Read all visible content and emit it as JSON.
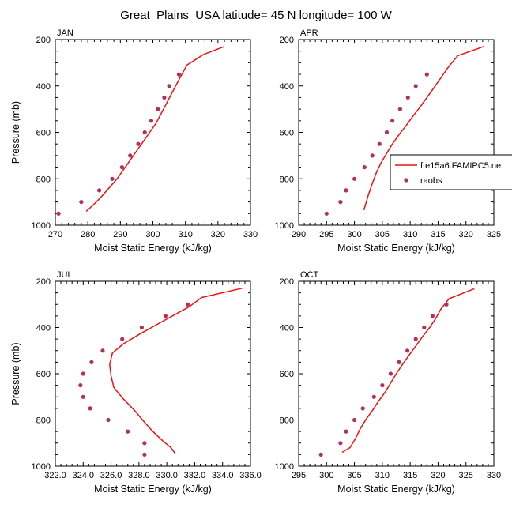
{
  "title": "Great_Plains_USA  latitude= 45 N longitude= 100 W",
  "chart_data": [
    {
      "type": "scatter",
      "panel_label": "JAN",
      "xlabel": "Moist Static Energy (kJ/kg)",
      "ylabel": "Pressure (mb)",
      "xlim": [
        270,
        330
      ],
      "ylim": [
        1000,
        200
      ],
      "y_reversed": true,
      "xticks": [
        270,
        280,
        290,
        300,
        310,
        320,
        330
      ],
      "xtick_labels": [
        "270",
        "280",
        "290",
        "300",
        "310",
        "320",
        "330"
      ],
      "yticks": [
        200,
        400,
        600,
        800,
        1000
      ],
      "yminor_step": 50,
      "series": [
        {
          "name": "f.e15a6.FAMIPC5.ne",
          "kind": "line",
          "color": "#ee1111",
          "points": [
            [
              279.5,
              940
            ],
            [
              281.5,
              915
            ],
            [
              284,
              880
            ],
            [
              286.5,
              840
            ],
            [
              289,
              800
            ],
            [
              291,
              760
            ],
            [
              293,
              720
            ],
            [
              295,
              680
            ],
            [
              297,
              640
            ],
            [
              299,
              600
            ],
            [
              301,
              560
            ],
            [
              302.5,
              520
            ],
            [
              304,
              480
            ],
            [
              305.5,
              440
            ],
            [
              307,
              400
            ],
            [
              308.5,
              360
            ],
            [
              310.5,
              310
            ],
            [
              315.5,
              265
            ],
            [
              322,
              230
            ]
          ]
        },
        {
          "name": "raobs",
          "kind": "scatter",
          "color": "#b03060",
          "points": [
            [
              271,
              950
            ],
            [
              278,
              900
            ],
            [
              283.5,
              850
            ],
            [
              287.5,
              800
            ],
            [
              290.5,
              750
            ],
            [
              293,
              700
            ],
            [
              295.5,
              650
            ],
            [
              297.5,
              600
            ],
            [
              299.5,
              550
            ],
            [
              301.5,
              500
            ],
            [
              303.5,
              450
            ],
            [
              305,
              400
            ],
            [
              308,
              350
            ]
          ]
        }
      ]
    },
    {
      "type": "scatter",
      "panel_label": "APR",
      "xlabel": "Moist Static Energy (kJ/kg)",
      "ylabel": "",
      "xlim": [
        290,
        325
      ],
      "ylim": [
        1000,
        200
      ],
      "y_reversed": true,
      "xticks": [
        290,
        295,
        300,
        305,
        310,
        315,
        320,
        325
      ],
      "xtick_labels": [
        "290",
        "295",
        "300",
        "305",
        "310",
        "315",
        "320",
        "325"
      ],
      "yticks": [
        200,
        400,
        600,
        800,
        1000
      ],
      "yminor_step": 50,
      "series": [
        {
          "name": "f.e15a6.FAMIPC5.ne",
          "kind": "line",
          "color": "#ee1111",
          "points": [
            [
              301.7,
              935
            ],
            [
              302,
              910
            ],
            [
              302.5,
              870
            ],
            [
              303.2,
              820
            ],
            [
              304,
              770
            ],
            [
              304.8,
              730
            ],
            [
              305.8,
              690
            ],
            [
              306.8,
              650
            ],
            [
              308,
              610
            ],
            [
              309.3,
              570
            ],
            [
              310.5,
              530
            ],
            [
              311.8,
              490
            ],
            [
              313,
              450
            ],
            [
              314.2,
              410
            ],
            [
              315.5,
              365
            ],
            [
              316.8,
              320
            ],
            [
              318.5,
              270
            ],
            [
              323.2,
              230
            ]
          ]
        },
        {
          "name": "raobs",
          "kind": "scatter",
          "color": "#b03060",
          "points": [
            [
              295,
              950
            ],
            [
              297.5,
              900
            ],
            [
              298.5,
              850
            ],
            [
              300,
              800
            ],
            [
              301.8,
              750
            ],
            [
              303.2,
              700
            ],
            [
              304.5,
              650
            ],
            [
              305.8,
              600
            ],
            [
              306.8,
              550
            ],
            [
              308.2,
              500
            ],
            [
              309.6,
              450
            ],
            [
              311,
              400
            ],
            [
              313,
              350
            ]
          ]
        }
      ]
    },
    {
      "type": "scatter",
      "panel_label": "JUL",
      "xlabel": "Moist Static Energy (kJ/kg)",
      "ylabel": "Pressure (mb)",
      "xlim": [
        322,
        336
      ],
      "ylim": [
        1000,
        200
      ],
      "y_reversed": true,
      "xticks": [
        322,
        324,
        326,
        328,
        330,
        332,
        334,
        336
      ],
      "xtick_labels": [
        "322.0",
        "324.0",
        "326.0",
        "328.0",
        "330.0",
        "332.0",
        "334.0",
        "336.0"
      ],
      "yticks": [
        200,
        400,
        600,
        800,
        1000
      ],
      "yminor_step": 50,
      "series": [
        {
          "name": "f.e15a6.FAMIPC5.ne",
          "kind": "line",
          "color": "#ee1111",
          "points": [
            [
              330.6,
              945
            ],
            [
              330.3,
              920
            ],
            [
              329.7,
              890
            ],
            [
              329,
              850
            ],
            [
              328.4,
              810
            ],
            [
              327.7,
              760
            ],
            [
              326.9,
              710
            ],
            [
              326.2,
              660
            ],
            [
              326,
              610
            ],
            [
              325.9,
              560
            ],
            [
              326.1,
              510
            ],
            [
              326.9,
              470
            ],
            [
              328,
              430
            ],
            [
              329.5,
              380
            ],
            [
              331.6,
              310
            ],
            [
              332.5,
              270
            ],
            [
              335.4,
              230
            ]
          ]
        },
        {
          "name": "raobs",
          "kind": "scatter",
          "color": "#b03060",
          "points": [
            [
              328.4,
              950
            ],
            [
              328.4,
              900
            ],
            [
              327.2,
              850
            ],
            [
              325.8,
              800
            ],
            [
              324.5,
              750
            ],
            [
              324,
              700
            ],
            [
              323.8,
              650
            ],
            [
              324,
              600
            ],
            [
              324.6,
              550
            ],
            [
              325.4,
              500
            ],
            [
              326.8,
              450
            ],
            [
              328.2,
              400
            ],
            [
              329.9,
              350
            ],
            [
              331.5,
              300
            ]
          ]
        }
      ]
    },
    {
      "type": "scatter",
      "panel_label": "OCT",
      "xlabel": "Moist Static Energy (kJ/kg)",
      "ylabel": "",
      "xlim": [
        295,
        330
      ],
      "ylim": [
        1000,
        200
      ],
      "y_reversed": true,
      "xticks": [
        295,
        300,
        305,
        310,
        315,
        320,
        325,
        330
      ],
      "xtick_labels": [
        "295",
        "300",
        "305",
        "310",
        "315",
        "320",
        "325",
        "330"
      ],
      "yticks": [
        200,
        400,
        600,
        800,
        1000
      ],
      "yminor_step": 50,
      "series": [
        {
          "name": "f.e15a6.FAMIPC5.ne",
          "kind": "line",
          "color": "#ee1111",
          "points": [
            [
              302.8,
              940
            ],
            [
              304.2,
              920
            ],
            [
              305.2,
              880
            ],
            [
              306,
              840
            ],
            [
              307,
              800
            ],
            [
              308.2,
              760
            ],
            [
              309.3,
              720
            ],
            [
              310.5,
              680
            ],
            [
              311.5,
              640
            ],
            [
              312.5,
              600
            ],
            [
              313.6,
              560
            ],
            [
              314.8,
              520
            ],
            [
              316,
              480
            ],
            [
              317.2,
              440
            ],
            [
              318.5,
              400
            ],
            [
              319.6,
              360
            ],
            [
              320.5,
              320
            ],
            [
              322,
              275
            ],
            [
              326.5,
              232
            ]
          ]
        },
        {
          "name": "raobs",
          "kind": "scatter",
          "color": "#b03060",
          "points": [
            [
              299,
              950
            ],
            [
              302.5,
              900
            ],
            [
              303.5,
              850
            ],
            [
              305,
              800
            ],
            [
              306.5,
              750
            ],
            [
              308.5,
              700
            ],
            [
              310,
              650
            ],
            [
              311.5,
              600
            ],
            [
              313,
              550
            ],
            [
              314.5,
              500
            ],
            [
              316,
              450
            ],
            [
              317.5,
              400
            ],
            [
              319,
              350
            ],
            [
              321.5,
              300
            ]
          ]
        }
      ]
    }
  ]
}
